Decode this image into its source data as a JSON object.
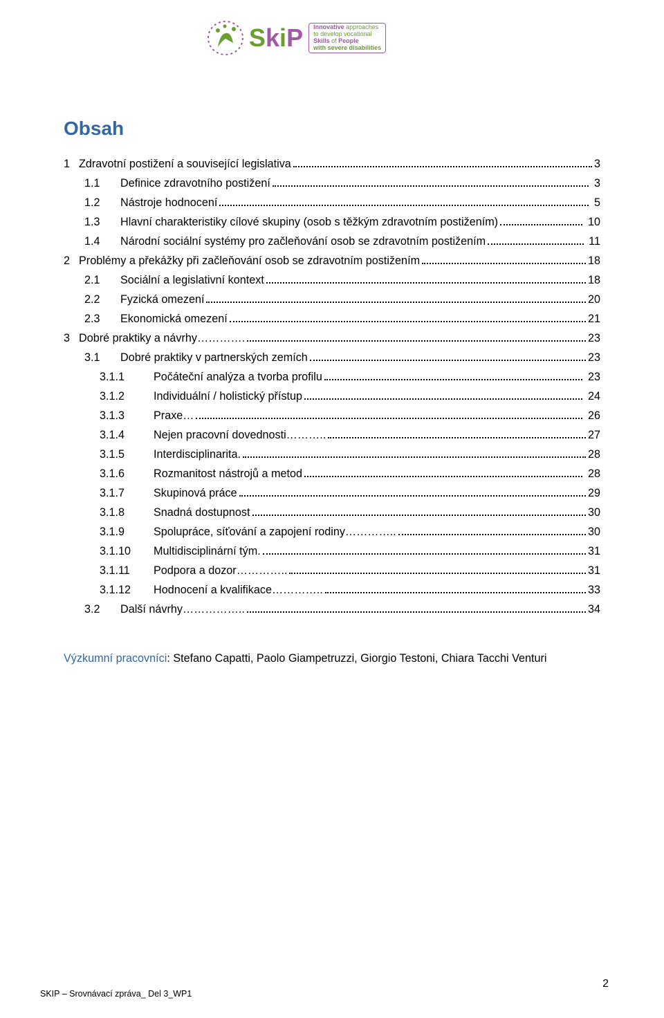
{
  "logo": {
    "word_letters": [
      "S",
      "k",
      "i",
      "P"
    ],
    "tagline_line1a": "Innovative",
    "tagline_line1b": " approaches",
    "tagline_line2": "to develop vocational",
    "tagline_line3a": "Skills",
    "tagline_line3b": " of ",
    "tagline_line3c": "People",
    "tagline_line4": "with severe disabilities"
  },
  "title": "Obsah",
  "toc": [
    {
      "level": 1,
      "num": "1",
      "text": "Zdravotní postižení a související legislativa",
      "page": "3",
      "gap_before_page": false
    },
    {
      "level": 2,
      "num": "1.1",
      "text": "Definice zdravotního postižení",
      "page": "3",
      "gap_before_page": true
    },
    {
      "level": 2,
      "num": "1.2",
      "text": "Nástroje hodnocení",
      "page": "5",
      "gap_before_page": true
    },
    {
      "level": 2,
      "num": "1.3",
      "text": "Hlavní charakteristiky cílové skupiny (osob s těžkým zdravotním postižením)",
      "page": "10",
      "gap_before_page": true
    },
    {
      "level": 2,
      "num": "1.4",
      "text": "Národní sociální systémy pro začleňování osob se zdravotním postižením",
      "page": "11",
      "gap_before_page": true
    },
    {
      "level": 1,
      "num": "2",
      "text": "Problémy a překážky při začleňování osob se zdravotním postižením",
      "page": "18",
      "gap_before_page": false
    },
    {
      "level": 2,
      "num": "2.1",
      "text": "Sociální a legislativní kontext",
      "page": "18",
      "gap_before_page": false
    },
    {
      "level": 2,
      "num": "2.2",
      "text": "Fyzická omezení",
      "page": "20",
      "gap_before_page": false
    },
    {
      "level": 2,
      "num": "2.3",
      "text": "Ekonomická omezení",
      "page": "21",
      "gap_before_page": false
    },
    {
      "level": 1,
      "num": "3",
      "text": "Dobré praktiky a návrhy…………. ",
      "page": "23",
      "gap_before_page": false
    },
    {
      "level": 2,
      "num": "3.1",
      "text": "Dobré praktiky v partnerských zemích",
      "page": "23",
      "gap_before_page": false
    },
    {
      "level": 3,
      "num": "3.1.1",
      "text": "Počáteční analýza a tvorba profilu",
      "page": "23",
      "gap_before_page": true
    },
    {
      "level": 3,
      "num": "3.1.2",
      "text": "Individuální / holistický přístup",
      "page": "24",
      "gap_before_page": true
    },
    {
      "level": 3,
      "num": "3.1.3",
      "text": "Praxe…",
      "page": "26",
      "gap_before_page": true
    },
    {
      "level": 3,
      "num": "3.1.4",
      "text": "Nejen pracovní dovednosti………..",
      "page": "27",
      "gap_before_page": false
    },
    {
      "level": 3,
      "num": "3.1.5",
      "text": "Interdisciplinarita. ",
      "page": "28",
      "gap_before_page": false
    },
    {
      "level": 3,
      "num": "3.1.6",
      "text": "Rozmanitost nástrojů a metod",
      "page": "28",
      "gap_before_page": true
    },
    {
      "level": 3,
      "num": "3.1.7",
      "text": "Skupinová práce",
      "page": "29",
      "gap_before_page": false
    },
    {
      "level": 3,
      "num": "3.1.8",
      "text": "Snadná dostupnost",
      "page": "30",
      "gap_before_page": false
    },
    {
      "level": 3,
      "num": "3.1.9",
      "text": "Spolupráce, síťování a zapojení rodiny…………..",
      "page": "30",
      "gap_before_page": false
    },
    {
      "level": 3,
      "num": "3.1.10",
      "text": "Multidisciplinární tým. ",
      "page": "31",
      "gap_before_page": false
    },
    {
      "level": 3,
      "num": "3.1.11",
      "text": "Podpora a dozor…………..",
      "page": "31",
      "gap_before_page": false
    },
    {
      "level": 3,
      "num": "3.1.12",
      "text": "Hodnocení a kvalifikace…………..",
      "page": "33",
      "gap_before_page": false
    },
    {
      "level": 2,
      "num": "3.2",
      "text": "Další návrhy……………..",
      "page": "34",
      "gap_before_page": false
    }
  ],
  "researchers": {
    "label": "Výzkumní pracovníci",
    "names": ": Stefano Capatti, Paolo Giampetruzzi, Giorgio Testoni, Chiara Tacchi Venturi"
  },
  "footer": {
    "left": "SKIP – Srovnávací zpráva_ Del 3_WP1",
    "page_number": "2"
  },
  "colors": {
    "heading": "#3366a3",
    "brand_green": "#6a9e2e",
    "brand_purple": "#a05aa3",
    "text": "#000000",
    "background": "#ffffff"
  }
}
